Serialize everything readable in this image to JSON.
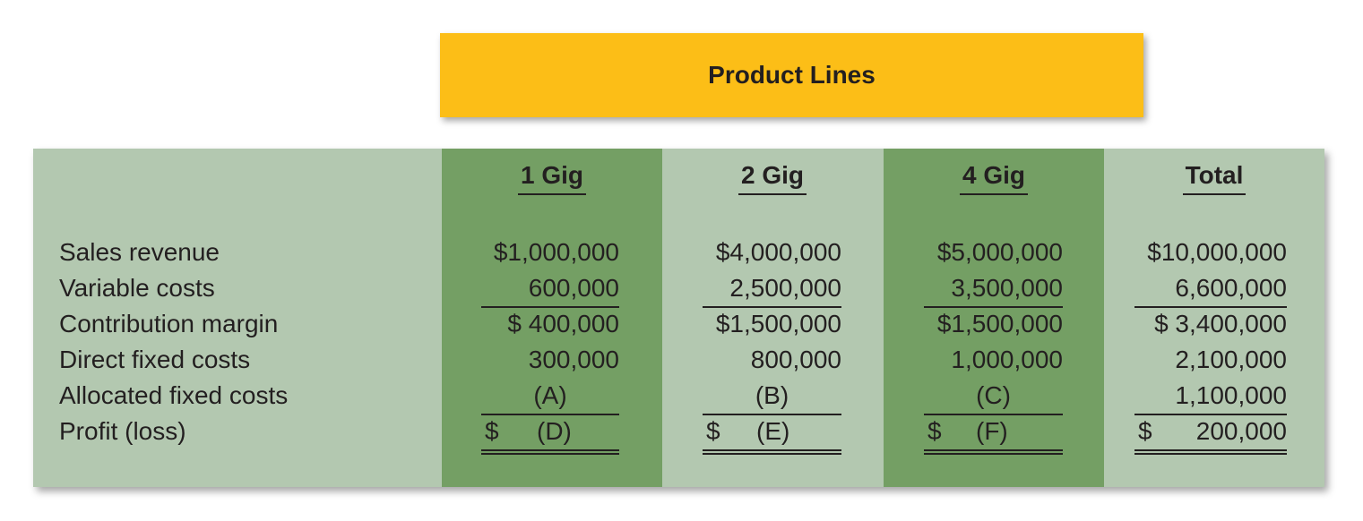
{
  "header": {
    "title": "Product Lines"
  },
  "columns": [
    {
      "key": "1gig",
      "heading": "1 Gig",
      "sales_revenue": "$1,000,000",
      "variable_costs": "600,000",
      "contribution_margin": "$ 400,000",
      "direct_fixed_costs": "300,000",
      "allocated_fixed_costs": "(A)",
      "profit_symbol": "$",
      "profit_value": "(D)"
    },
    {
      "key": "2gig",
      "heading": "2 Gig",
      "sales_revenue": "$4,000,000",
      "variable_costs": "2,500,000",
      "contribution_margin": "$1,500,000",
      "direct_fixed_costs": "800,000",
      "allocated_fixed_costs": "(B)",
      "profit_symbol": "$",
      "profit_value": "(E)"
    },
    {
      "key": "4gig",
      "heading": "4 Gig",
      "sales_revenue": "$5,000,000",
      "variable_costs": "3,500,000",
      "contribution_margin": "$1,500,000",
      "direct_fixed_costs": "1,000,000",
      "allocated_fixed_costs": "(C)",
      "profit_symbol": "$",
      "profit_value": "(F)"
    },
    {
      "key": "total",
      "heading": "Total",
      "sales_revenue": "$10,000,000",
      "variable_costs": "6,600,000",
      "contribution_margin": "$ 3,400,000",
      "direct_fixed_costs": "2,100,000",
      "allocated_fixed_costs": "1,100,000",
      "profit_symbol": "$",
      "profit_value": "200,000"
    }
  ],
  "row_labels": {
    "sales_revenue": "Sales revenue",
    "variable_costs": "Variable costs",
    "contribution_margin": "Contribution margin",
    "direct_fixed_costs": "Direct fixed costs",
    "allocated_fixed_costs": "Allocated fixed costs",
    "profit": "Profit (loss)"
  },
  "colors": {
    "title_fill": "#fcbe17",
    "panel_fill": "#b3c8b0",
    "highlight_column_fill": "#749f64",
    "text": "#231f20"
  }
}
